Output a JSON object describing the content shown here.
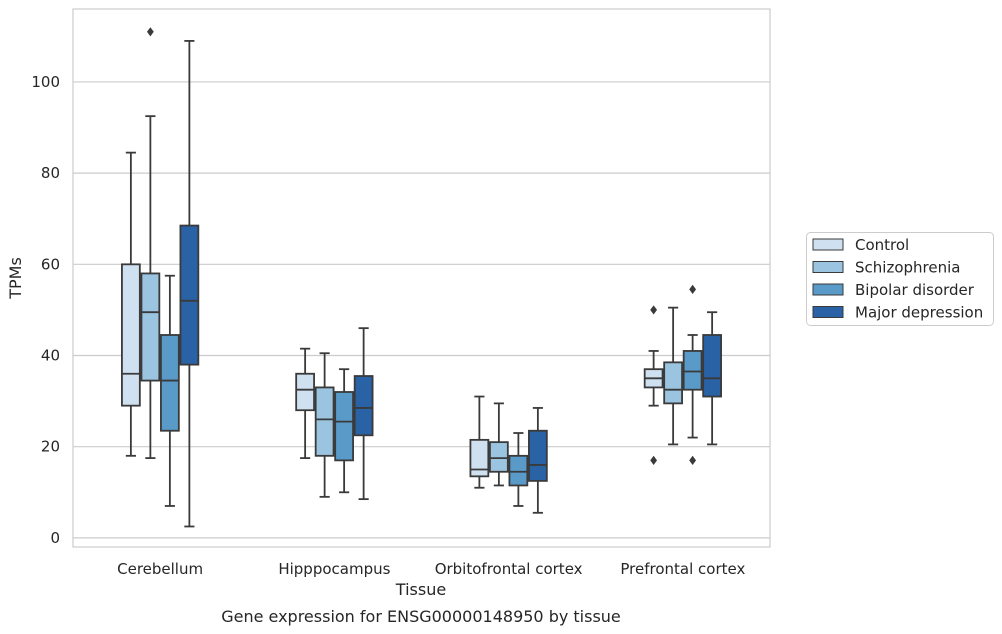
{
  "chart_data": {
    "type": "boxplot",
    "xlabel": "Tissue",
    "ylabel": "TPMs",
    "caption": "Gene expression for ENSG00000148950 by tissue",
    "ylim": [
      -2,
      116
    ],
    "yticks": [
      0,
      20,
      40,
      60,
      80,
      100
    ],
    "grid": true,
    "legend_position": "right",
    "categories": [
      "Cerebellum",
      "Hipppocampus",
      "Orbitofrontal cortex",
      "Prefrontal cortex"
    ],
    "series": [
      {
        "name": "Control",
        "color": "#cfe1f1",
        "boxes": [
          {
            "whisker_low": 18,
            "q1": 29,
            "median": 36,
            "q3": 60,
            "whisker_high": 84.5,
            "outliers": []
          },
          {
            "whisker_low": 17.5,
            "q1": 28,
            "median": 32.5,
            "q3": 36,
            "whisker_high": 41.5,
            "outliers": []
          },
          {
            "whisker_low": 11,
            "q1": 13.5,
            "median": 15,
            "q3": 21.5,
            "whisker_high": 31,
            "outliers": []
          },
          {
            "whisker_low": 29,
            "q1": 33,
            "median": 35,
            "q3": 37,
            "whisker_high": 41,
            "outliers": [
              50,
              17
            ]
          }
        ]
      },
      {
        "name": "Schizophrenia",
        "color": "#9ac4e0",
        "boxes": [
          {
            "whisker_low": 17.5,
            "q1": 34.5,
            "median": 49.5,
            "q3": 58,
            "whisker_high": 92.5,
            "outliers": [
              111
            ]
          },
          {
            "whisker_low": 9,
            "q1": 18,
            "median": 26,
            "q3": 33,
            "whisker_high": 40.5,
            "outliers": []
          },
          {
            "whisker_low": 11.5,
            "q1": 14.5,
            "median": 17.5,
            "q3": 21,
            "whisker_high": 29.5,
            "outliers": []
          },
          {
            "whisker_low": 20.5,
            "q1": 29.5,
            "median": 32.5,
            "q3": 38.5,
            "whisker_high": 50.5,
            "outliers": []
          }
        ]
      },
      {
        "name": "Bipolar disorder",
        "color": "#5a9ac8",
        "boxes": [
          {
            "whisker_low": 7,
            "q1": 23.5,
            "median": 34.5,
            "q3": 44.5,
            "whisker_high": 57.5,
            "outliers": []
          },
          {
            "whisker_low": 10,
            "q1": 17,
            "median": 25.5,
            "q3": 32,
            "whisker_high": 37,
            "outliers": []
          },
          {
            "whisker_low": 7,
            "q1": 11.5,
            "median": 14.5,
            "q3": 18,
            "whisker_high": 23,
            "outliers": []
          },
          {
            "whisker_low": 22,
            "q1": 32.5,
            "median": 36.5,
            "q3": 41,
            "whisker_high": 44.5,
            "outliers": [
              54.5,
              17
            ]
          }
        ]
      },
      {
        "name": "Major depression",
        "color": "#2a62a6",
        "boxes": [
          {
            "whisker_low": 2.5,
            "q1": 38,
            "median": 52,
            "q3": 68.5,
            "whisker_high": 109,
            "outliers": []
          },
          {
            "whisker_low": 8.5,
            "q1": 22.5,
            "median": 28.5,
            "q3": 35.5,
            "whisker_high": 46,
            "outliers": []
          },
          {
            "whisker_low": 5.5,
            "q1": 12.5,
            "median": 16,
            "q3": 23.5,
            "whisker_high": 28.5,
            "outliers": []
          },
          {
            "whisker_low": 20.5,
            "q1": 31,
            "median": 35,
            "q3": 44.5,
            "whisker_high": 49.5,
            "outliers": []
          }
        ]
      }
    ]
  }
}
